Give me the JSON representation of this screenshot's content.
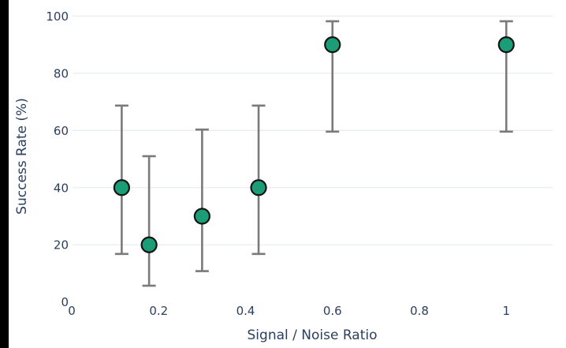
{
  "window": {
    "background_color": "#ffffff",
    "left_strip_color": "#000000"
  },
  "chart_data": {
    "type": "scatter",
    "title": "",
    "xlabel": "Signal / Noise Ratio",
    "ylabel": "Success Rate (%)",
    "x_ticks": [
      0,
      0.2,
      0.4,
      0.6,
      0.8,
      1
    ],
    "x_tick_labels": [
      "0",
      "0.2",
      "0.4",
      "0.6",
      "0.8",
      "1"
    ],
    "y_ticks": [
      0,
      20,
      40,
      60,
      80,
      100
    ],
    "y_tick_labels": [
      "0",
      "20",
      "40",
      "60",
      "80",
      "100"
    ],
    "xlim": [
      0,
      1.107
    ],
    "ylim": [
      0,
      101.8
    ],
    "grid": "horizontal-only",
    "legend": "none",
    "series": [
      {
        "name": "success-rate-vs-snr",
        "marker_color": "#1b9e77",
        "marker_edge_color": "#131313",
        "error_bar_color": "#7a7a7a",
        "points": [
          {
            "x": 0.115,
            "y": 40,
            "ci_low": 16.8,
            "ci_high": 68.7
          },
          {
            "x": 0.178,
            "y": 20,
            "ci_low": 5.7,
            "ci_high": 51.0
          },
          {
            "x": 0.3,
            "y": 30,
            "ci_low": 10.8,
            "ci_high": 60.3
          },
          {
            "x": 0.43,
            "y": 40,
            "ci_low": 16.8,
            "ci_high": 68.7
          },
          {
            "x": 0.6,
            "y": 90,
            "ci_low": 59.6,
            "ci_high": 98.2
          },
          {
            "x": 1.0,
            "y": 90,
            "ci_low": 59.6,
            "ci_high": 98.2
          }
        ]
      }
    ],
    "colors": {
      "text": "#2a3f5f",
      "grid": "#e9edf2",
      "plot_background": "#ffffff"
    }
  }
}
